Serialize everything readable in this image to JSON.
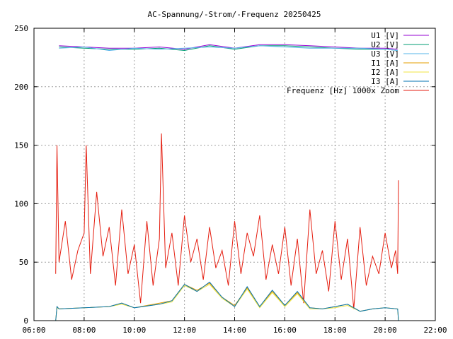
{
  "chart_data": {
    "type": "line",
    "title": "AC-Spannung/-Strom/-Frequenz 20250425",
    "xlabel": "",
    "ylabel": "",
    "xlim": [
      "06:00",
      "22:00"
    ],
    "ylim": [
      0,
      250
    ],
    "x_ticks": [
      "06:00",
      "08:00",
      "10:00",
      "12:00",
      "14:00",
      "16:00",
      "18:00",
      "20:00",
      "22:00"
    ],
    "y_ticks": [
      "0",
      "50",
      "100",
      "150",
      "200",
      "250"
    ],
    "grid": true,
    "legend_position": "top-right",
    "series": [
      {
        "name": "U1 [V]",
        "color": "#9400d3",
        "x": [
          "07:00",
          "08:00",
          "09:00",
          "10:00",
          "11:00",
          "12:00",
          "13:00",
          "14:00",
          "15:00",
          "16:00",
          "17:00",
          "18:00",
          "19:00",
          "20:00",
          "20:30"
        ],
        "y": [
          235,
          234,
          233,
          233,
          234,
          232,
          236,
          233,
          236,
          236,
          235,
          234,
          233,
          233,
          232
        ]
      },
      {
        "name": "U2 [V]",
        "color": "#009e73",
        "x": [
          "07:00",
          "08:00",
          "09:00",
          "10:00",
          "11:00",
          "12:00",
          "13:00",
          "14:00",
          "15:00",
          "16:00",
          "17:00",
          "18:00",
          "19:00",
          "20:00",
          "20:30"
        ],
        "y": [
          234,
          233,
          232,
          232,
          233,
          231,
          235,
          232,
          235,
          235,
          234,
          233,
          232,
          232,
          231
        ]
      },
      {
        "name": "U3 [V]",
        "color": "#56b4e9",
        "x": [
          "07:00",
          "08:00",
          "09:00",
          "10:00",
          "11:00",
          "12:00",
          "13:00",
          "14:00",
          "15:00",
          "16:00",
          "17:00",
          "18:00",
          "19:00",
          "20:00",
          "20:30"
        ],
        "y": [
          233,
          234,
          231,
          233,
          232,
          233,
          234,
          233,
          235,
          234,
          233,
          233,
          233,
          232,
          231
        ]
      },
      {
        "name": "I1 [A]",
        "color": "#e69f00",
        "x": [
          "06:52",
          "06:55",
          "07:00",
          "08:00",
          "09:00",
          "09:30",
          "10:00",
          "11:00",
          "11:30",
          "12:00",
          "12:30",
          "13:00",
          "13:30",
          "14:00",
          "14:30",
          "15:00",
          "15:30",
          "16:00",
          "16:30",
          "17:00",
          "17:30",
          "18:00",
          "18:30",
          "19:00",
          "19:30",
          "20:00",
          "20:30",
          "20:32"
        ],
        "y": [
          0,
          12,
          10,
          11,
          12,
          15,
          11,
          15,
          17,
          31,
          26,
          32,
          20,
          13,
          28,
          12,
          25,
          13,
          24,
          11,
          10,
          12,
          14,
          8,
          10,
          11,
          10,
          0
        ]
      },
      {
        "name": "I2 [A]",
        "color": "#f0e442",
        "x": [
          "06:52",
          "06:55",
          "07:00",
          "08:00",
          "09:00",
          "09:30",
          "10:00",
          "11:00",
          "11:30",
          "12:00",
          "12:30",
          "13:00",
          "13:30",
          "14:00",
          "14:30",
          "15:00",
          "15:30",
          "16:00",
          "16:30",
          "17:00",
          "17:30",
          "18:00",
          "18:30",
          "19:00",
          "19:30",
          "20:00",
          "20:30",
          "20:32"
        ],
        "y": [
          0,
          11,
          10,
          11,
          12,
          14,
          11,
          14,
          16,
          30,
          25,
          31,
          19,
          12,
          27,
          11,
          24,
          12,
          23,
          10,
          10,
          11,
          13,
          8,
          10,
          11,
          10,
          0
        ]
      },
      {
        "name": "I3 [A]",
        "color": "#0072b2",
        "x": [
          "06:52",
          "06:55",
          "07:00",
          "08:00",
          "09:00",
          "09:30",
          "10:00",
          "11:00",
          "11:30",
          "12:00",
          "12:30",
          "13:00",
          "13:30",
          "14:00",
          "14:30",
          "15:00",
          "15:30",
          "16:00",
          "16:30",
          "17:00",
          "17:30",
          "18:00",
          "18:30",
          "19:00",
          "19:30",
          "20:00",
          "20:30",
          "20:32"
        ],
        "y": [
          0,
          12,
          10,
          11,
          12,
          15,
          11,
          14,
          17,
          31,
          25,
          33,
          20,
          12,
          29,
          12,
          26,
          13,
          25,
          11,
          10,
          12,
          14,
          8,
          10,
          11,
          10,
          0
        ]
      },
      {
        "name": "Frequenz [Hz] 1000x Zoom",
        "color": "#e51e10",
        "x": [
          "06:52",
          "06:55",
          "07:00",
          "07:15",
          "07:30",
          "07:45",
          "08:00",
          "08:05",
          "08:15",
          "08:30",
          "08:45",
          "09:00",
          "09:15",
          "09:30",
          "09:45",
          "10:00",
          "10:15",
          "10:30",
          "10:45",
          "11:00",
          "11:05",
          "11:15",
          "11:30",
          "11:45",
          "12:00",
          "12:15",
          "12:30",
          "12:45",
          "13:00",
          "13:15",
          "13:30",
          "13:45",
          "14:00",
          "14:15",
          "14:30",
          "14:45",
          "15:00",
          "15:15",
          "15:30",
          "15:45",
          "16:00",
          "16:15",
          "16:30",
          "16:45",
          "17:00",
          "17:15",
          "17:30",
          "17:45",
          "18:00",
          "18:15",
          "18:30",
          "18:45",
          "19:00",
          "19:15",
          "19:30",
          "19:45",
          "20:00",
          "20:15",
          "20:25",
          "20:30",
          "20:32"
        ],
        "y": [
          40,
          150,
          50,
          85,
          35,
          60,
          75,
          150,
          40,
          110,
          55,
          80,
          30,
          95,
          40,
          65,
          15,
          85,
          30,
          70,
          160,
          45,
          75,
          30,
          90,
          50,
          70,
          35,
          80,
          45,
          60,
          30,
          85,
          40,
          75,
          55,
          90,
          35,
          65,
          40,
          80,
          30,
          70,
          15,
          95,
          40,
          60,
          25,
          85,
          35,
          70,
          10,
          80,
          30,
          55,
          40,
          75,
          45,
          60,
          40,
          120
        ]
      }
    ]
  }
}
